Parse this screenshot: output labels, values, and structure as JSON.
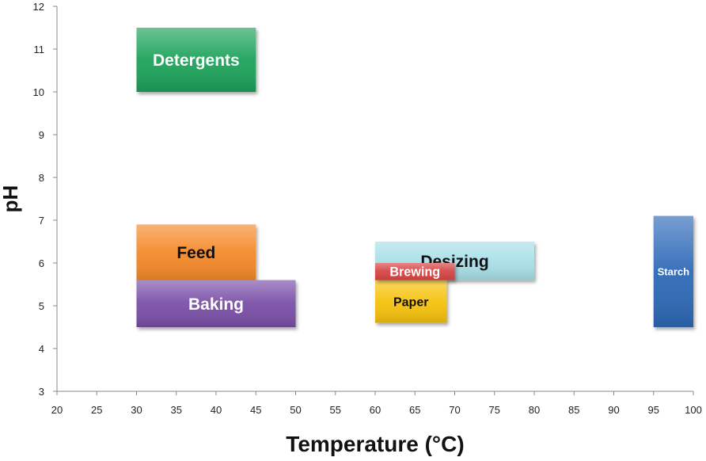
{
  "chart_data": {
    "type": "range-bar",
    "title": "",
    "xlabel": "Temperature (°C)",
    "ylabel": "pH",
    "xlim": [
      20,
      100
    ],
    "ylim": [
      3,
      12
    ],
    "x_ticks": [
      20,
      25,
      30,
      35,
      40,
      45,
      50,
      55,
      60,
      65,
      70,
      75,
      80,
      85,
      90,
      95,
      100
    ],
    "y_ticks": [
      3,
      4,
      5,
      6,
      7,
      8,
      9,
      10,
      11,
      12
    ],
    "grid": false,
    "legend": "none",
    "series": [
      {
        "name": "Detergents",
        "temp": [
          30,
          45
        ],
        "ph": [
          10,
          11.5
        ],
        "color": "#1fa35a",
        "label_color": "#ffffff"
      },
      {
        "name": "Feed",
        "temp": [
          30,
          45
        ],
        "ph": [
          5.6,
          6.9
        ],
        "color": "#f58a2b",
        "label_color": "#111111"
      },
      {
        "name": "Baking",
        "temp": [
          30,
          50
        ],
        "ph": [
          4.5,
          5.6
        ],
        "color": "#7a4fa8",
        "label_color": "#ffffff"
      },
      {
        "name": "Desizing",
        "temp": [
          60,
          80
        ],
        "ph": [
          5.6,
          6.5
        ],
        "color": "#a9dfe8",
        "label_color": "#111111"
      },
      {
        "name": "Paper",
        "temp": [
          60,
          69
        ],
        "ph": [
          4.6,
          5.6
        ],
        "color": "#f7c20c",
        "label_color": "#111111"
      },
      {
        "name": "Brewing",
        "temp": [
          60,
          70
        ],
        "ph": [
          5.6,
          6.0
        ],
        "color": "#d64545",
        "label_color": "#ffffff"
      },
      {
        "name": "Starch",
        "temp": [
          95,
          100
        ],
        "ph": [
          4.5,
          7.1
        ],
        "color": "#2f6bb8",
        "label_color": "#ffffff"
      }
    ]
  }
}
